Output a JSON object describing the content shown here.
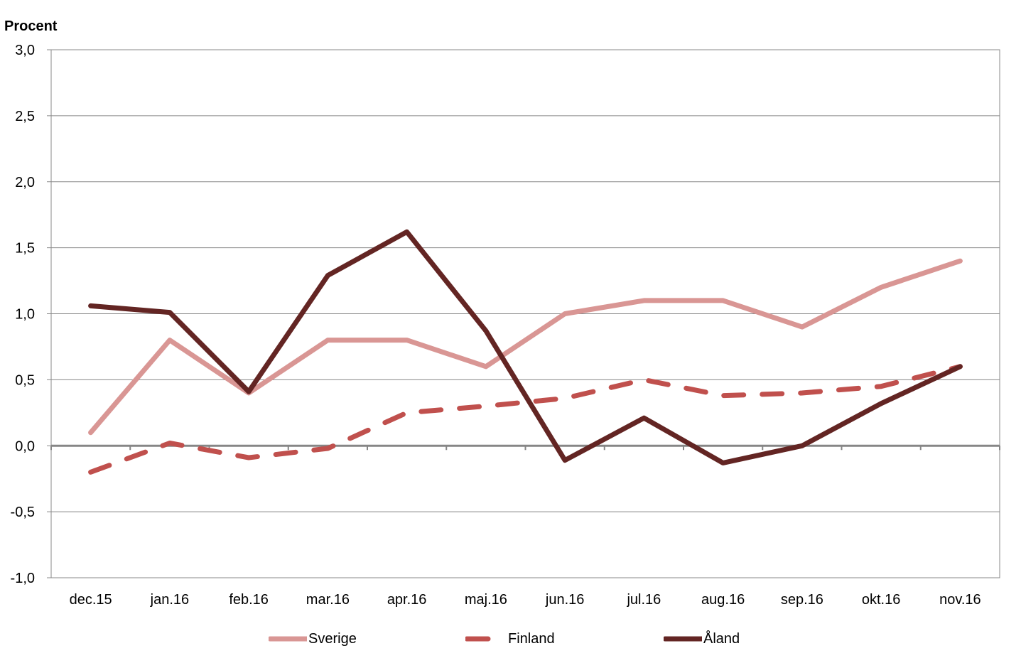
{
  "chart_data": {
    "type": "line",
    "ylabel": "Procent",
    "xlabel": "",
    "ylim": [
      -1.0,
      3.0
    ],
    "ytick_step": 0.5,
    "ytick_labels": [
      "-1,0",
      "-0,5",
      "0,0",
      "0,5",
      "1,0",
      "1,5",
      "2,0",
      "2,5",
      "3,0"
    ],
    "categories": [
      "dec.15",
      "jan.16",
      "feb.16",
      "mar.16",
      "apr.16",
      "maj.16",
      "jun.16",
      "jul.16",
      "aug.16",
      "sep.16",
      "okt.16",
      "nov.16"
    ],
    "grid": "horizontal",
    "legend_position": "bottom",
    "series": [
      {
        "name": "Sverige",
        "color": "#d99694",
        "dash": "solid",
        "values": [
          0.1,
          0.8,
          0.4,
          0.8,
          0.8,
          0.6,
          1.0,
          1.1,
          1.1,
          0.9,
          1.2,
          1.4
        ]
      },
      {
        "name": "Finland",
        "color": "#c0504d",
        "dash": "dashed",
        "values": [
          -0.2,
          0.02,
          -0.09,
          -0.02,
          0.25,
          0.3,
          0.36,
          0.5,
          0.38,
          0.4,
          0.45,
          0.6
        ]
      },
      {
        "name": "Åland",
        "color": "#632523",
        "dash": "solid",
        "values": [
          1.06,
          1.01,
          0.41,
          1.29,
          1.62,
          0.87,
          -0.11,
          0.21,
          -0.13,
          0.0,
          0.32,
          0.6
        ]
      }
    ]
  }
}
